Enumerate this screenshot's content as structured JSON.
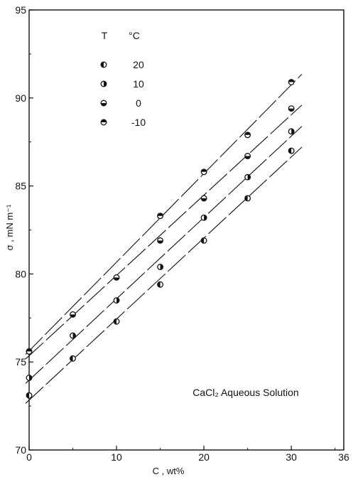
{
  "chart_data": {
    "type": "scatter",
    "title": "",
    "xlabel": "C , wt%",
    "ylabel": "σ , mN m⁻¹",
    "xlim": [
      0,
      36
    ],
    "ylim": [
      70,
      95
    ],
    "x_ticks": [
      0,
      10,
      20,
      30,
      36
    ],
    "y_ticks": [
      70,
      75,
      80,
      85,
      90,
      95
    ],
    "grid": false,
    "annotation": "CaCl₂ Aqueous Solution",
    "legend": {
      "placement": "top-left",
      "header_symbol": "T",
      "header_unit": "°C",
      "entries": [
        "20",
        "10",
        "0",
        "-10"
      ]
    },
    "series": [
      {
        "name": "20",
        "marker": "half-left",
        "x": [
          0,
          5,
          10,
          15,
          20,
          25,
          30
        ],
        "y": [
          73.1,
          75.2,
          77.3,
          79.4,
          81.9,
          84.3,
          87.0
        ]
      },
      {
        "name": "10",
        "marker": "half-right",
        "x": [
          0,
          5,
          10,
          15,
          20,
          25,
          30
        ],
        "y": [
          74.1,
          76.5,
          78.5,
          80.4,
          83.2,
          85.5,
          88.1
        ]
      },
      {
        "name": "0",
        "marker": "half-bottom",
        "x": [
          0,
          5,
          10,
          15,
          20,
          25,
          30
        ],
        "y": [
          75.6,
          77.7,
          79.8,
          81.9,
          84.3,
          86.7,
          89.4
        ]
      },
      {
        "name": "-10",
        "marker": "half-top",
        "x": [
          0,
          15,
          20,
          25,
          30
        ],
        "y": [
          75.6,
          83.3,
          85.8,
          87.9,
          90.9
        ]
      }
    ]
  }
}
